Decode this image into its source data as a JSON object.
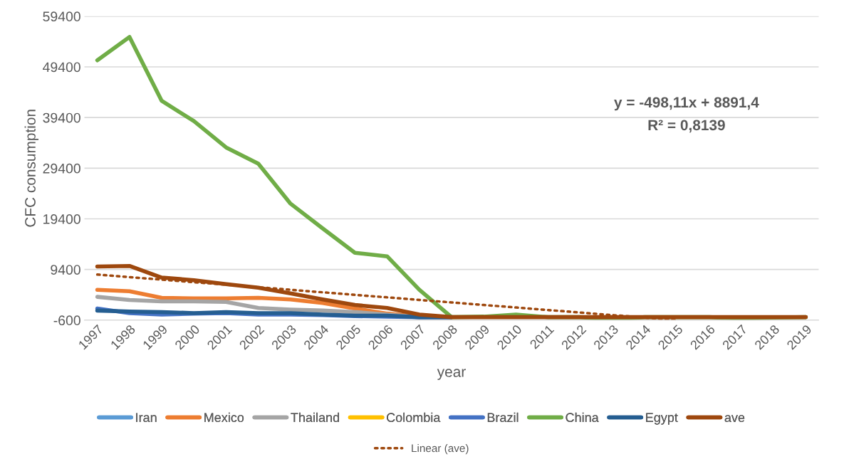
{
  "chart_data": {
    "type": "line",
    "xlabel": "year",
    "ylabel": "CFC consumption",
    "categories": [
      "1997",
      "1998",
      "1999",
      "2000",
      "2001",
      "2002",
      "2003",
      "2004",
      "2005",
      "2006",
      "2007",
      "2008",
      "2009",
      "2010",
      "2011",
      "2012",
      "2013",
      "2014",
      "2015",
      "2016",
      "2017",
      "2018",
      "2019"
    ],
    "ylim": [
      -600,
      59400
    ],
    "yticks": [
      -600,
      9400,
      19400,
      29400,
      39400,
      49400,
      59400
    ],
    "grid": "y",
    "legend": "bottom",
    "line_style": "solid",
    "marker": "none",
    "series": [
      {
        "name": "Iran",
        "color": "#5b9bd5",
        "values": [
          null,
          null,
          null,
          null,
          null,
          null,
          null,
          null,
          null,
          null,
          null,
          null,
          null,
          null,
          null,
          null,
          null,
          null,
          null,
          null,
          null,
          null,
          null
        ]
      },
      {
        "name": "Mexico",
        "color": "#ed7d31",
        "values": [
          5400,
          5100,
          3800,
          3700,
          3700,
          3800,
          3500,
          2800,
          1700,
          700,
          100,
          0,
          null,
          null,
          null,
          null,
          null,
          null,
          null,
          null,
          null,
          null,
          null
        ]
      },
      {
        "name": "Thailand",
        "color": "#a5a5a5",
        "values": [
          4000,
          3400,
          3100,
          3100,
          3000,
          1800,
          1500,
          1300,
          1000,
          500,
          0,
          0,
          null,
          null,
          null,
          null,
          null,
          null,
          null,
          null,
          null,
          null,
          null
        ]
      },
      {
        "name": "Colombia",
        "color": "#ffc000",
        "values": [
          null,
          null,
          null,
          null,
          null,
          null,
          null,
          null,
          null,
          null,
          null,
          null,
          null,
          null,
          null,
          null,
          null,
          null,
          null,
          null,
          null,
          null,
          null
        ]
      },
      {
        "name": "Brazil",
        "color": "#4472c4",
        "values": [
          1700,
          800,
          500,
          700,
          800,
          500,
          500,
          400,
          200,
          100,
          0,
          0,
          null,
          null,
          null,
          null,
          null,
          null,
          null,
          null,
          null,
          null,
          null
        ]
      },
      {
        "name": "China",
        "color": "#70ad47",
        "values": [
          50700,
          55300,
          42700,
          38700,
          33500,
          30300,
          22400,
          17500,
          12700,
          12000,
          5400,
          0,
          100,
          500,
          0,
          0,
          -500,
          0,
          0,
          0,
          -300,
          -100,
          0
        ]
      },
      {
        "name": "Egypt",
        "color": "#255e91",
        "values": [
          1300,
          1100,
          1000,
          800,
          1000,
          800,
          800,
          500,
          300,
          300,
          0,
          0,
          null,
          null,
          null,
          null,
          null,
          null,
          null,
          null,
          null,
          null,
          null
        ]
      },
      {
        "name": "ave",
        "color": "#9e480e",
        "values": [
          10000,
          10100,
          7800,
          7300,
          6500,
          5800,
          4700,
          3500,
          2400,
          1800,
          500,
          0,
          0,
          0,
          0,
          0,
          0,
          0,
          0,
          0,
          0,
          0,
          0
        ]
      },
      {
        "name": "Linear (ave)",
        "color": "#9e480e",
        "line_style": "dotted",
        "values": [
          8400,
          7900,
          7400,
          6900,
          6400,
          5900,
          5400,
          4900,
          4400,
          3900,
          3400,
          2900,
          2400,
          1900,
          1400,
          900,
          400,
          -100,
          -600,
          null,
          null,
          null,
          null
        ]
      }
    ],
    "annotations": [
      "y = -498,11x + 8891,4",
      "R² = 0,8139"
    ]
  }
}
